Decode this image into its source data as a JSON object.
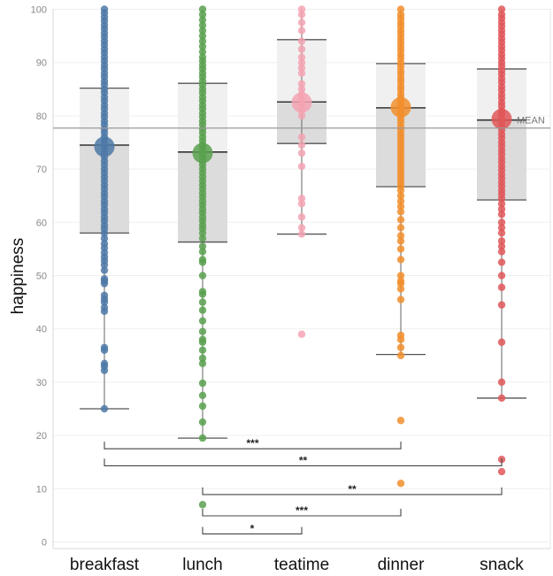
{
  "chart_data": {
    "type": "box-strip",
    "title": "",
    "xlabel": "",
    "ylabel": "happiness",
    "ylim": [
      0,
      100
    ],
    "yticks": [
      0,
      10,
      20,
      30,
      40,
      50,
      60,
      70,
      80,
      90,
      100
    ],
    "categories": [
      "breakfast",
      "lunch",
      "teatime",
      "dinner",
      "snack"
    ],
    "colors": {
      "breakfast": "#4e79a7",
      "lunch": "#59a14f",
      "teatime": "#f4a3b3",
      "dinner": "#f28e2b",
      "snack": "#e15759"
    },
    "grand_mean": {
      "label": "MEAN",
      "value": 77.7
    },
    "series": [
      {
        "name": "breakfast",
        "mean": 74.2,
        "median": 74.5,
        "q1": 58.0,
        "q3": 85.2,
        "whisker_low": 25.0,
        "whisker_high": 100,
        "points": [
          25.0,
          32.2,
          33.0,
          33.5,
          36.0,
          36.5,
          43.3,
          44.0,
          45.0,
          45.6,
          46.3,
          48.5,
          49.0,
          49.4,
          51.0,
          52.0,
          52.8,
          53.5,
          54.3,
          55.2,
          56.0,
          57.0,
          58.0,
          58.8,
          59.5,
          60.3,
          61.0,
          61.8,
          62.5,
          63.3,
          64.0,
          64.8,
          65.5,
          66.3,
          67.0,
          67.8,
          68.5,
          69.3,
          70.0,
          70.8,
          71.5,
          72.3,
          73.0,
          73.8,
          74.5,
          75.3,
          76.0,
          76.8,
          77.5,
          78.3,
          79.0,
          79.8,
          80.5,
          81.3,
          82.0,
          82.8,
          83.5,
          84.3,
          85.0,
          85.8,
          86.5,
          87.3,
          88.0,
          88.8,
          89.5,
          90.3,
          91.0,
          91.8,
          92.5,
          93.3,
          94.0,
          94.8,
          95.5,
          96.3,
          97.0,
          97.8,
          98.5,
          99.3,
          100
        ]
      },
      {
        "name": "lunch",
        "mean": 73.0,
        "median": 73.2,
        "q1": 56.3,
        "q3": 86.1,
        "whisker_low": 19.5,
        "whisker_high": 100,
        "points": [
          7.0,
          19.5,
          22.5,
          25.5,
          27.5,
          29.8,
          33.5,
          34.5,
          36.0,
          37.5,
          38.0,
          39.5,
          41.5,
          43.5,
          45.0,
          46.5,
          47.0,
          50.0,
          52.5,
          53.0,
          54.5,
          55.5,
          57.0,
          58.0,
          58.8,
          59.5,
          60.3,
          61.0,
          61.8,
          62.5,
          63.3,
          64.0,
          64.8,
          65.5,
          66.3,
          67.0,
          67.8,
          68.5,
          69.3,
          70.0,
          70.8,
          71.5,
          72.3,
          73.0,
          73.8,
          74.5,
          75.3,
          76.0,
          76.8,
          77.5,
          78.3,
          79.0,
          79.8,
          80.5,
          81.3,
          82.0,
          82.8,
          83.5,
          84.3,
          85.0,
          85.8,
          86.5,
          87.3,
          88.0,
          88.8,
          89.5,
          90.3,
          91.0,
          92.0,
          93.0,
          94.0,
          95.0,
          96.0,
          97.0,
          98.0,
          99.0,
          100
        ]
      },
      {
        "name": "teatime",
        "mean": 82.5,
        "median": 82.6,
        "q1": 74.8,
        "q3": 94.3,
        "whisker_low": 57.8,
        "whisker_high": 100,
        "points": [
          39.0,
          57.8,
          59.0,
          61.0,
          63.5,
          64.5,
          70.5,
          73.0,
          74.5,
          76.0,
          80.0,
          81.0,
          82.0,
          83.0,
          84.0,
          85.0,
          86.0,
          88.0,
          89.0,
          90.0,
          91.0,
          92.5,
          94.0,
          96.0,
          97.5,
          99.0,
          100
        ]
      },
      {
        "name": "dinner",
        "mean": 81.6,
        "median": 81.5,
        "q1": 66.7,
        "q3": 89.8,
        "whisker_low": 35.2,
        "whisker_high": 100,
        "points": [
          11.0,
          22.8,
          35.0,
          36.5,
          38.0,
          38.8,
          45.5,
          47.5,
          48.5,
          49.0,
          50.0,
          53.0,
          55.0,
          56.5,
          57.5,
          59.0,
          60.5,
          62.0,
          63.0,
          64.0,
          65.0,
          66.0,
          66.8,
          67.5,
          68.3,
          69.0,
          69.8,
          70.5,
          71.3,
          72.0,
          72.8,
          73.5,
          74.3,
          75.0,
          75.8,
          76.5,
          77.3,
          78.0,
          78.8,
          79.5,
          80.3,
          81.0,
          81.8,
          82.5,
          83.3,
          84.0,
          84.8,
          85.5,
          86.3,
          87.0,
          87.8,
          88.5,
          89.3,
          90.0,
          90.8,
          91.5,
          92.3,
          93.0,
          93.8,
          94.5,
          95.3,
          96.0,
          96.8,
          97.5,
          98.3,
          99.0,
          100
        ]
      },
      {
        "name": "snack",
        "mean": 79.4,
        "median": 79.2,
        "q1": 64.2,
        "q3": 88.8,
        "whisker_low": 27.0,
        "whisker_high": 100,
        "points": [
          13.2,
          15.5,
          27.0,
          30.0,
          37.5,
          44.5,
          47.8,
          50.0,
          52.5,
          54.5,
          55.5,
          56.5,
          58.0,
          59.0,
          60.0,
          61.5,
          62.5,
          63.5,
          64.5,
          65.3,
          66.0,
          66.8,
          67.5,
          68.3,
          69.0,
          69.8,
          70.5,
          71.3,
          72.0,
          72.8,
          73.5,
          74.3,
          75.0,
          75.8,
          76.5,
          77.3,
          78.0,
          78.8,
          79.5,
          80.3,
          81.0,
          81.8,
          82.5,
          83.3,
          84.0,
          84.8,
          85.5,
          86.3,
          87.0,
          87.8,
          88.5,
          89.3,
          90.0,
          90.8,
          91.5,
          92.3,
          93.0,
          93.8,
          94.5,
          95.3,
          96.0,
          96.8,
          97.5,
          98.3,
          99.0,
          100
        ]
      }
    ],
    "significance": [
      {
        "from": "breakfast",
        "to": "dinner",
        "y": 17.5,
        "label": "***"
      },
      {
        "from": "breakfast",
        "to": "snack",
        "y": 14.3,
        "label": "**"
      },
      {
        "from": "lunch",
        "to": "snack",
        "y": 8.9,
        "label": "**"
      },
      {
        "from": "lunch",
        "to": "dinner",
        "y": 4.9,
        "label": "***"
      },
      {
        "from": "lunch",
        "to": "teatime",
        "y": 1.5,
        "label": "*"
      }
    ]
  }
}
